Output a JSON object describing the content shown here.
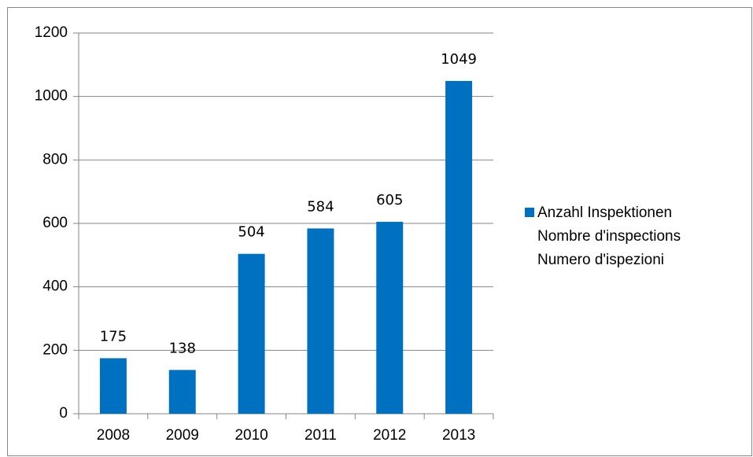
{
  "chart_data": {
    "type": "bar",
    "categories": [
      "2008",
      "2009",
      "2010",
      "2011",
      "2012",
      "2013"
    ],
    "series": [
      {
        "name": "Anzahl Inspektionen\nNombre d'inspections\nNumero d'ispezioni",
        "color": "#0070c0",
        "values": [
          175,
          138,
          504,
          584,
          605,
          1049
        ]
      }
    ],
    "ylim": [
      0,
      1200
    ],
    "yticks": [
      0,
      200,
      400,
      600,
      800,
      1000,
      1200
    ],
    "grid": true,
    "legend": "right",
    "data_labels": true
  }
}
